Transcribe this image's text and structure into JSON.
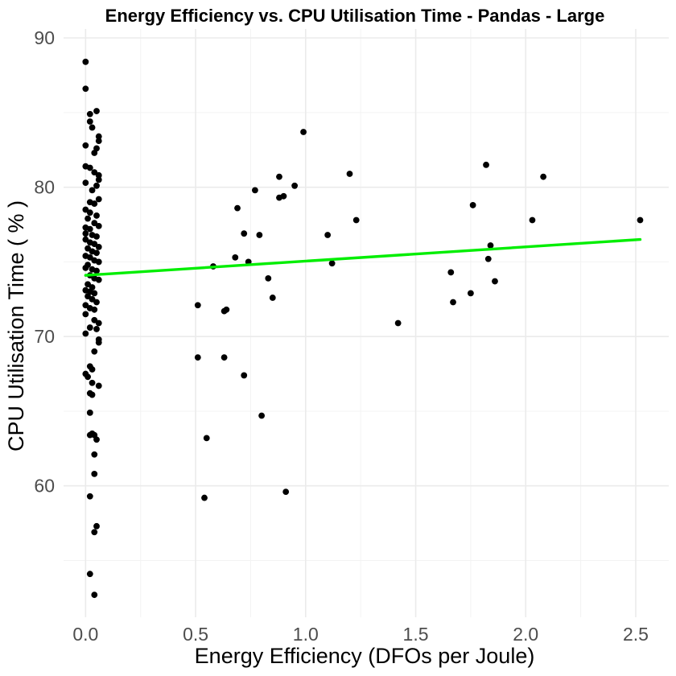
{
  "chart_data": {
    "type": "scatter",
    "title": "Energy Efficiency vs. CPU Utilisation Time  -  Pandas  -  Large",
    "xlabel": "Energy Efficiency (DFOs per Joule)",
    "ylabel": "CPU Utilisation Time ( % )",
    "xlim": [
      -0.1,
      2.65
    ],
    "ylim": [
      51.2,
      90.6
    ],
    "x_ticks": [
      0.0,
      0.5,
      1.0,
      1.5,
      2.0,
      2.5
    ],
    "x_tick_labels": [
      "0.0",
      "0.5",
      "1.0",
      "1.5",
      "2.0",
      "2.5"
    ],
    "y_ticks": [
      60,
      70,
      80,
      90
    ],
    "y_tick_labels": [
      "60",
      "70",
      "80",
      "90"
    ],
    "grid": true,
    "point_color": "#000000",
    "trend_color": "#00ee00",
    "trend_line": {
      "x": [
        0.0,
        2.52
      ],
      "y": [
        74.1,
        76.5
      ]
    },
    "points": [
      {
        "x": 0.0,
        "y": 88.4
      },
      {
        "x": 0.0,
        "y": 86.6
      },
      {
        "x": 0.02,
        "y": 84.9
      },
      {
        "x": 0.05,
        "y": 85.1
      },
      {
        "x": 0.02,
        "y": 84.4
      },
      {
        "x": 0.03,
        "y": 84.0
      },
      {
        "x": 0.06,
        "y": 83.4
      },
      {
        "x": 0.06,
        "y": 83.1
      },
      {
        "x": 0.0,
        "y": 82.8
      },
      {
        "x": 0.05,
        "y": 82.6
      },
      {
        "x": 0.04,
        "y": 82.3
      },
      {
        "x": 0.0,
        "y": 81.4
      },
      {
        "x": 0.02,
        "y": 81.3
      },
      {
        "x": 0.04,
        "y": 81.0
      },
      {
        "x": 0.06,
        "y": 80.8
      },
      {
        "x": 0.06,
        "y": 80.5
      },
      {
        "x": 0.0,
        "y": 80.3
      },
      {
        "x": 0.05,
        "y": 80.1
      },
      {
        "x": 0.03,
        "y": 79.8
      },
      {
        "x": 0.02,
        "y": 79.0
      },
      {
        "x": 0.04,
        "y": 78.9
      },
      {
        "x": 0.06,
        "y": 79.2
      },
      {
        "x": 0.0,
        "y": 78.5
      },
      {
        "x": 0.02,
        "y": 78.3
      },
      {
        "x": 0.05,
        "y": 78.1
      },
      {
        "x": 0.01,
        "y": 77.9
      },
      {
        "x": 0.04,
        "y": 77.6
      },
      {
        "x": 0.0,
        "y": 77.3
      },
      {
        "x": 0.02,
        "y": 77.2
      },
      {
        "x": 0.06,
        "y": 77.4
      },
      {
        "x": 0.0,
        "y": 76.9
      },
      {
        "x": 0.03,
        "y": 76.8
      },
      {
        "x": 0.05,
        "y": 76.7
      },
      {
        "x": 0.0,
        "y": 76.5
      },
      {
        "x": 0.02,
        "y": 76.3
      },
      {
        "x": 0.04,
        "y": 76.2
      },
      {
        "x": 0.06,
        "y": 76.0
      },
      {
        "x": 0.01,
        "y": 75.9
      },
      {
        "x": 0.03,
        "y": 75.7
      },
      {
        "x": 0.05,
        "y": 75.6
      },
      {
        "x": 0.0,
        "y": 75.4
      },
      {
        "x": 0.02,
        "y": 75.3
      },
      {
        "x": 0.04,
        "y": 75.1
      },
      {
        "x": 0.06,
        "y": 75.0
      },
      {
        "x": 0.01,
        "y": 74.8
      },
      {
        "x": 0.0,
        "y": 74.6
      },
      {
        "x": 0.03,
        "y": 74.5
      },
      {
        "x": 0.05,
        "y": 74.4
      },
      {
        "x": 0.02,
        "y": 74.1
      },
      {
        "x": 0.04,
        "y": 73.9
      },
      {
        "x": 0.06,
        "y": 73.8
      },
      {
        "x": 0.01,
        "y": 73.5
      },
      {
        "x": 0.03,
        "y": 73.3
      },
      {
        "x": 0.0,
        "y": 73.1
      },
      {
        "x": 0.02,
        "y": 73.0
      },
      {
        "x": 0.04,
        "y": 72.9
      },
      {
        "x": 0.01,
        "y": 72.7
      },
      {
        "x": 0.03,
        "y": 72.5
      },
      {
        "x": 0.05,
        "y": 72.3
      },
      {
        "x": 0.0,
        "y": 72.1
      },
      {
        "x": 0.02,
        "y": 71.9
      },
      {
        "x": 0.04,
        "y": 71.8
      },
      {
        "x": 0.0,
        "y": 71.5
      },
      {
        "x": 0.04,
        "y": 71.1
      },
      {
        "x": 0.06,
        "y": 70.9
      },
      {
        "x": 0.02,
        "y": 70.6
      },
      {
        "x": 0.05,
        "y": 70.5
      },
      {
        "x": 0.0,
        "y": 70.2
      },
      {
        "x": 0.06,
        "y": 69.8
      },
      {
        "x": 0.06,
        "y": 69.6
      },
      {
        "x": 0.04,
        "y": 69.0
      },
      {
        "x": 0.02,
        "y": 68.0
      },
      {
        "x": 0.0,
        "y": 67.5
      },
      {
        "x": 0.01,
        "y": 67.3
      },
      {
        "x": 0.03,
        "y": 67.8
      },
      {
        "x": 0.03,
        "y": 66.9
      },
      {
        "x": 0.06,
        "y": 66.7
      },
      {
        "x": 0.02,
        "y": 66.2
      },
      {
        "x": 0.03,
        "y": 66.1
      },
      {
        "x": 0.02,
        "y": 64.9
      },
      {
        "x": 0.02,
        "y": 63.4
      },
      {
        "x": 0.03,
        "y": 63.5
      },
      {
        "x": 0.04,
        "y": 63.4
      },
      {
        "x": 0.05,
        "y": 63.1
      },
      {
        "x": 0.04,
        "y": 62.1
      },
      {
        "x": 0.04,
        "y": 60.8
      },
      {
        "x": 0.02,
        "y": 59.3
      },
      {
        "x": 0.05,
        "y": 57.3
      },
      {
        "x": 0.04,
        "y": 56.9
      },
      {
        "x": 0.02,
        "y": 54.1
      },
      {
        "x": 0.04,
        "y": 52.7
      },
      {
        "x": 0.51,
        "y": 72.1
      },
      {
        "x": 0.51,
        "y": 68.6
      },
      {
        "x": 0.55,
        "y": 63.2
      },
      {
        "x": 0.54,
        "y": 59.2
      },
      {
        "x": 0.58,
        "y": 74.7
      },
      {
        "x": 0.63,
        "y": 71.7
      },
      {
        "x": 0.64,
        "y": 71.8
      },
      {
        "x": 0.63,
        "y": 68.6
      },
      {
        "x": 0.68,
        "y": 75.3
      },
      {
        "x": 0.69,
        "y": 78.6
      },
      {
        "x": 0.72,
        "y": 76.9
      },
      {
        "x": 0.72,
        "y": 67.4
      },
      {
        "x": 0.74,
        "y": 75.0
      },
      {
        "x": 0.77,
        "y": 79.8
      },
      {
        "x": 0.79,
        "y": 76.8
      },
      {
        "x": 0.8,
        "y": 64.7
      },
      {
        "x": 0.83,
        "y": 73.9
      },
      {
        "x": 0.85,
        "y": 72.6
      },
      {
        "x": 0.88,
        "y": 80.7
      },
      {
        "x": 0.88,
        "y": 79.3
      },
      {
        "x": 0.9,
        "y": 79.4
      },
      {
        "x": 0.91,
        "y": 59.6
      },
      {
        "x": 0.95,
        "y": 80.1
      },
      {
        "x": 0.99,
        "y": 83.7
      },
      {
        "x": 1.1,
        "y": 76.8
      },
      {
        "x": 1.12,
        "y": 74.9
      },
      {
        "x": 1.2,
        "y": 80.9
      },
      {
        "x": 1.23,
        "y": 77.8
      },
      {
        "x": 1.42,
        "y": 70.9
      },
      {
        "x": 1.66,
        "y": 74.3
      },
      {
        "x": 1.67,
        "y": 72.3
      },
      {
        "x": 1.75,
        "y": 72.9
      },
      {
        "x": 1.76,
        "y": 78.8
      },
      {
        "x": 1.82,
        "y": 81.5
      },
      {
        "x": 1.83,
        "y": 75.2
      },
      {
        "x": 1.84,
        "y": 76.1
      },
      {
        "x": 1.86,
        "y": 73.7
      },
      {
        "x": 2.03,
        "y": 77.8
      },
      {
        "x": 2.08,
        "y": 80.7
      },
      {
        "x": 2.52,
        "y": 77.8
      }
    ]
  }
}
